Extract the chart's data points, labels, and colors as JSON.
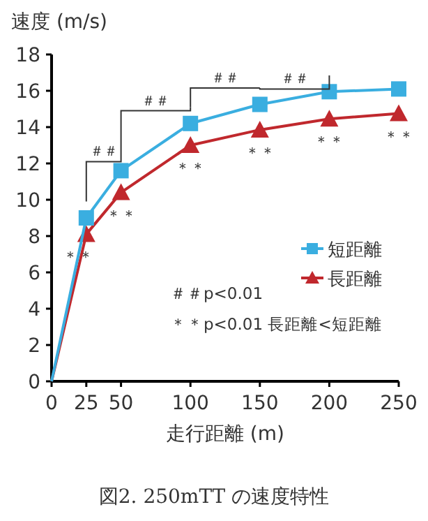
{
  "chart_data": {
    "type": "line",
    "xlabel": "走行距離 (m)",
    "ylabel": "速度 (m/s)",
    "x": [
      0,
      25,
      50,
      100,
      150,
      200,
      250
    ],
    "series": [
      {
        "name": "短距離",
        "color": "#3aaee0",
        "marker": "square",
        "values": [
          0,
          9.0,
          11.6,
          14.2,
          15.25,
          15.95,
          16.1
        ]
      },
      {
        "name": "長距離",
        "color": "#c0282d",
        "marker": "triangle",
        "values": [
          0,
          8.1,
          10.4,
          13.0,
          13.85,
          14.45,
          14.75
        ]
      }
    ],
    "xlim": [
      0,
      250
    ],
    "xticks": [
      0,
      25,
      50,
      100,
      150,
      200,
      250
    ],
    "ylim": [
      0,
      18
    ],
    "yticks": [
      0,
      2,
      4,
      6,
      8,
      10,
      12,
      14,
      16,
      18
    ],
    "grid": false,
    "legend": "right",
    "annotations": [
      "＃＃",
      "＃＃",
      "＃＃",
      "＃＃",
      "＊＊",
      "＊＊",
      "＊＊",
      "＊＊",
      "＊＊",
      "＊＊",
      "＃＃p<0.01",
      "＊＊p<0.01 長距離<短距離",
      "図2. 250mTT の速度特性"
    ]
  }
}
